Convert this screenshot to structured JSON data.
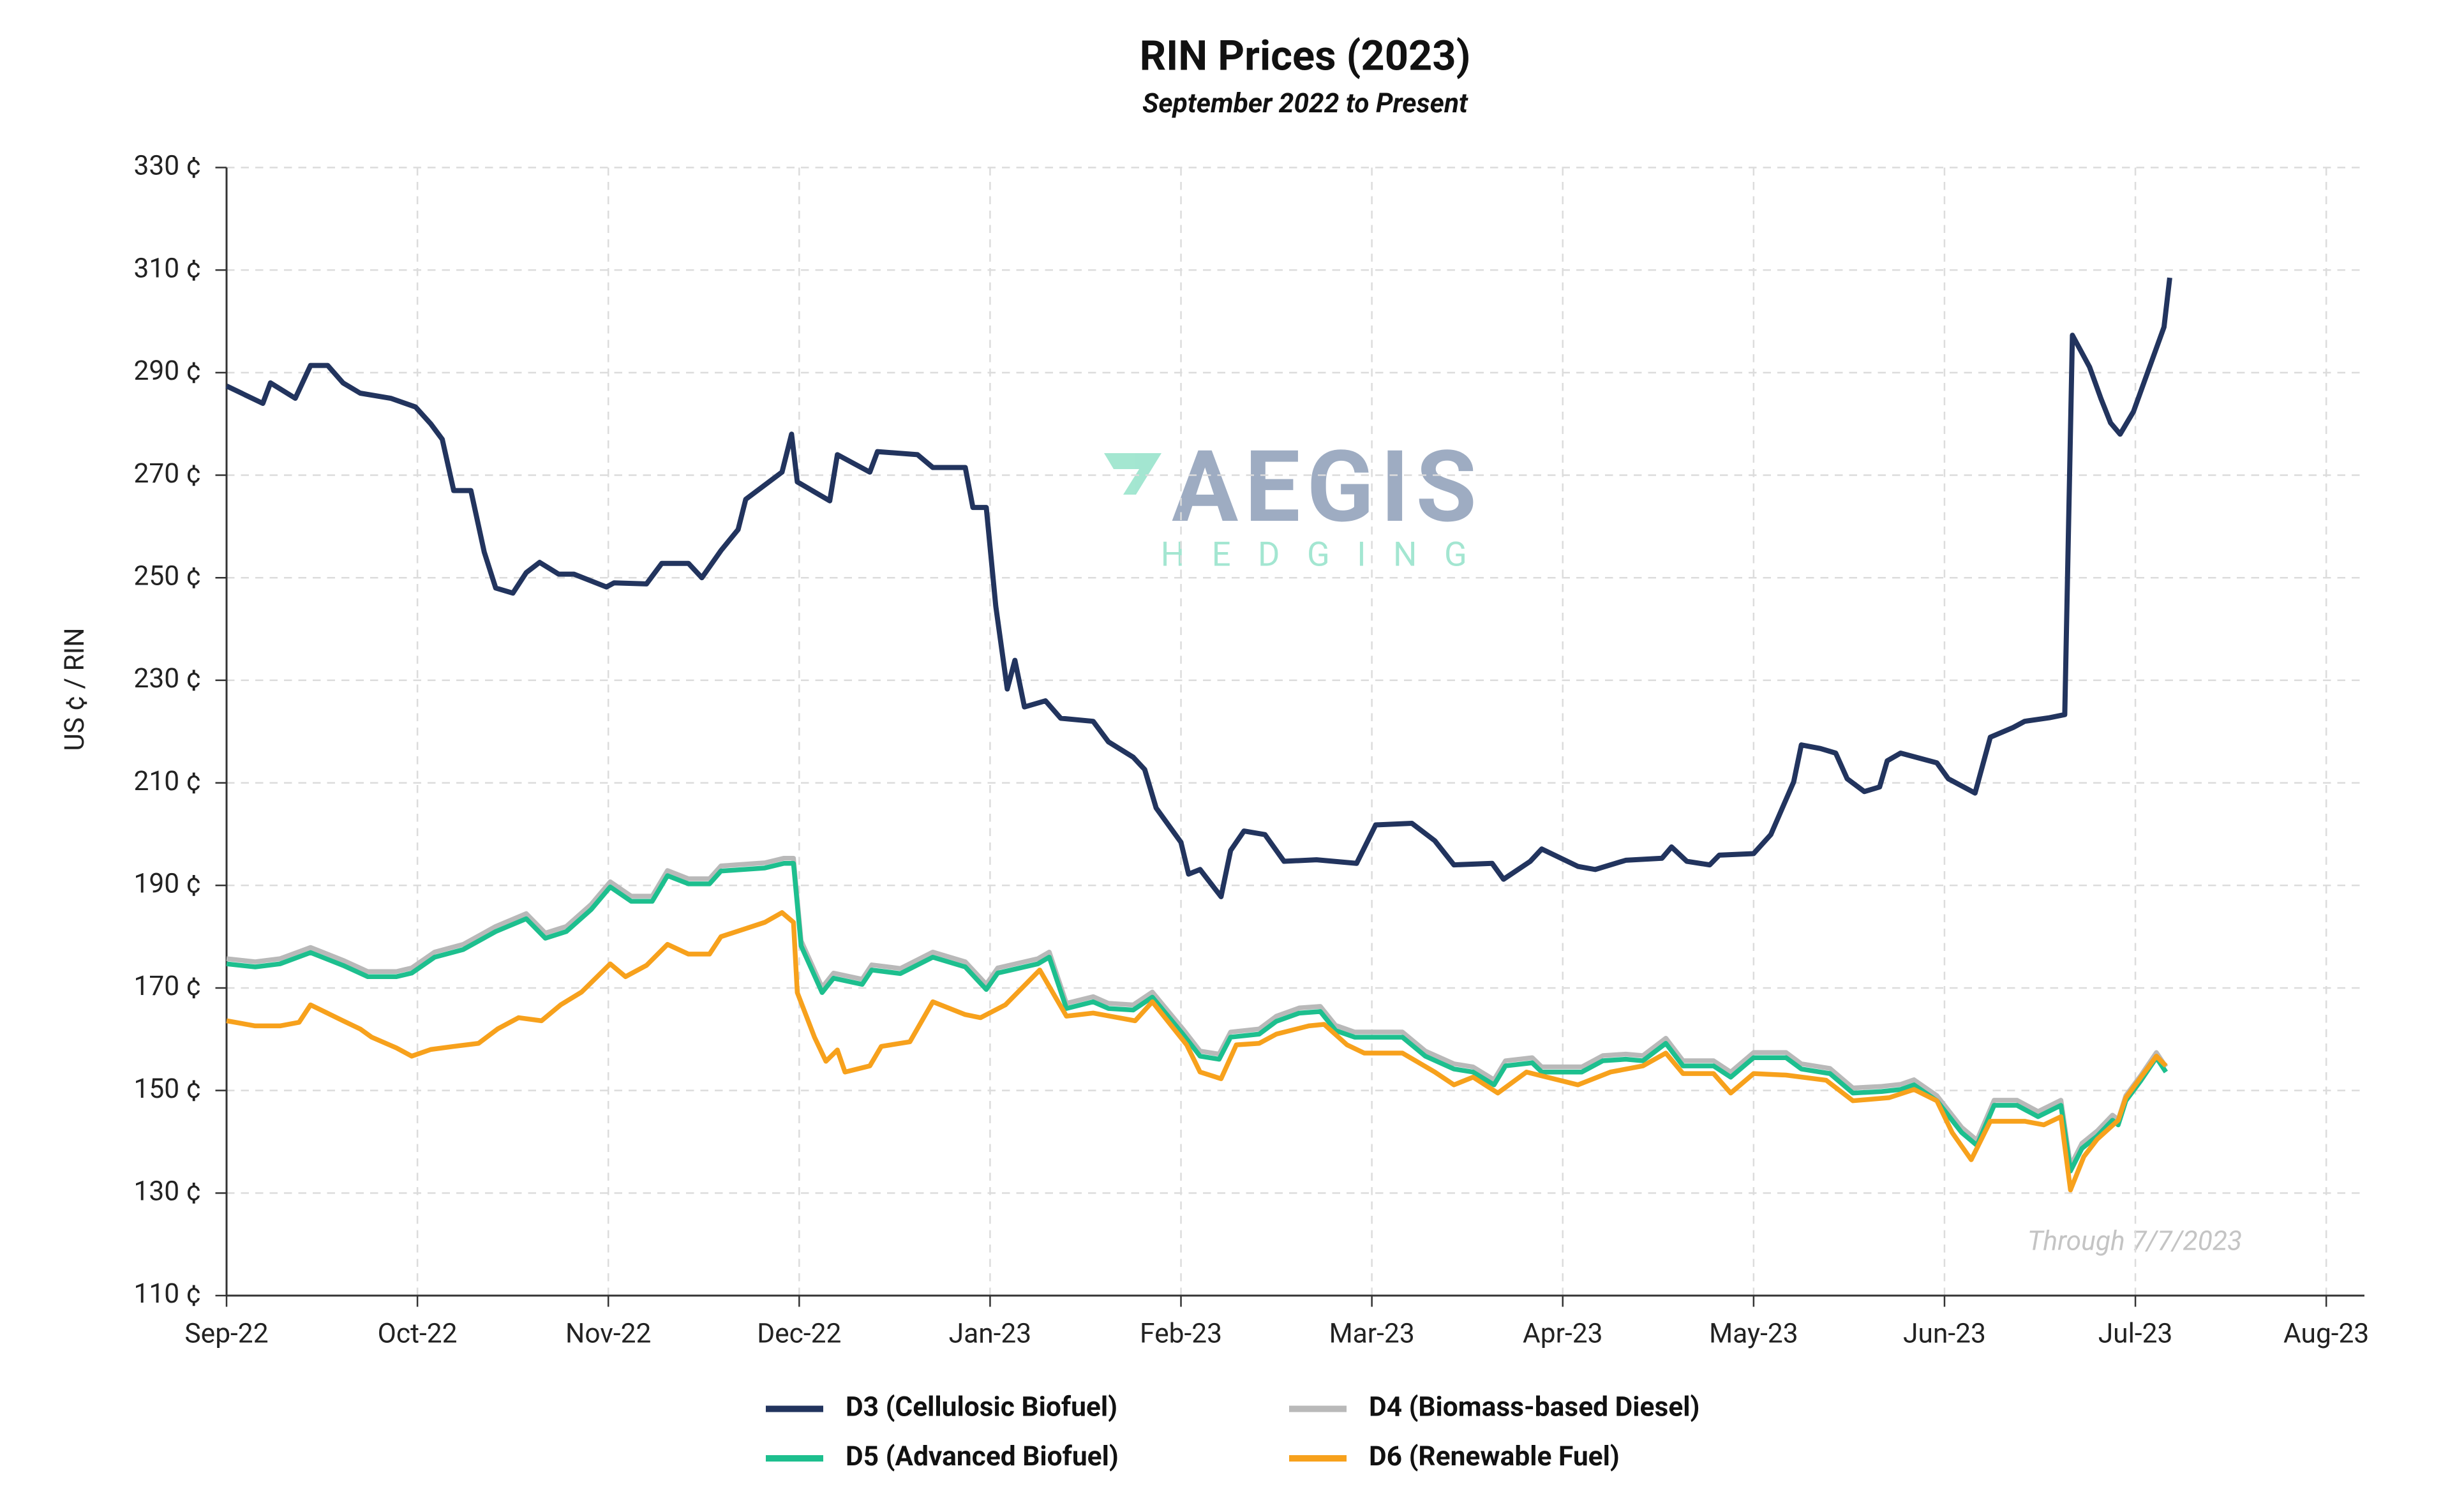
{
  "chart_data": {
    "type": "line",
    "title": "RIN Prices (2023)",
    "subtitle": "September 2022 to Present",
    "y_label": "US ¢  / RIN",
    "annotation": "Through 7/7/2023",
    "watermark": [
      "AEGIS",
      "HEDGING"
    ],
    "grid": true,
    "xlim": [
      0,
      11.2
    ],
    "xticks": [
      {
        "value": 0,
        "label": "Sep-22"
      },
      {
        "value": 1,
        "label": "Oct-22"
      },
      {
        "value": 2,
        "label": "Nov-22"
      },
      {
        "value": 3,
        "label": "Dec-22"
      },
      {
        "value": 4,
        "label": "Jan-23"
      },
      {
        "value": 5,
        "label": "Feb-23"
      },
      {
        "value": 6,
        "label": "Mar-23"
      },
      {
        "value": 7,
        "label": "Apr-23"
      },
      {
        "value": 8,
        "label": "May-23"
      },
      {
        "value": 9,
        "label": "Jun-23"
      },
      {
        "value": 10,
        "label": "Jul-23"
      },
      {
        "value": 11,
        "label": "Aug-23"
      }
    ],
    "ylim": [
      110,
      330
    ],
    "yticks": [
      {
        "value": 110,
        "label": "110 ¢"
      },
      {
        "value": 130,
        "label": "130 ¢"
      },
      {
        "value": 150,
        "label": "150 ¢"
      },
      {
        "value": 170,
        "label": "170 ¢"
      },
      {
        "value": 190,
        "label": "190 ¢"
      },
      {
        "value": 210,
        "label": "210 ¢"
      },
      {
        "value": 230,
        "label": "230 ¢"
      },
      {
        "value": 250,
        "label": "250 ¢"
      },
      {
        "value": 270,
        "label": "270 ¢"
      },
      {
        "value": 290,
        "label": "290 ¢"
      },
      {
        "value": 310,
        "label": "310 ¢"
      },
      {
        "value": 330,
        "label": "330 ¢"
      }
    ],
    "series": [
      {
        "name": "D3 (Cellulosic Biofuel)",
        "color": "#22345e",
        "x": [
          0,
          0.19,
          0.23,
          0.36,
          0.44,
          0.53,
          0.61,
          0.7,
          0.86,
          0.99,
          1.07,
          1.13,
          1.19,
          1.28,
          1.35,
          1.41,
          1.5,
          1.57,
          1.64,
          1.74,
          1.82,
          1.99,
          2.03,
          2.2,
          2.28,
          2.42,
          2.49,
          2.59,
          2.68,
          2.72,
          2.91,
          2.96,
          2.99,
          3.16,
          3.2,
          3.37,
          3.41,
          3.62,
          3.7,
          3.87,
          3.91,
          3.98,
          4.03,
          4.09,
          4.13,
          4.18,
          4.29,
          4.37,
          4.54,
          4.62,
          4.75,
          4.81,
          4.87,
          5.0,
          5.04,
          5.1,
          5.21,
          5.26,
          5.33,
          5.44,
          5.54,
          5.71,
          5.92,
          6.02,
          6.21,
          6.33,
          6.43,
          6.63,
          6.69,
          6.83,
          6.89,
          7.08,
          7.17,
          7.33,
          7.52,
          7.57,
          7.65,
          7.77,
          7.82,
          8.0,
          8.09,
          8.21,
          8.25,
          8.35,
          8.43,
          8.49,
          8.58,
          8.66,
          8.7,
          8.77,
          8.96,
          9.02,
          9.16,
          9.24,
          9.36,
          9.42,
          9.55,
          9.63,
          9.67,
          9.76,
          9.82,
          9.87,
          9.92,
          9.99,
          10.15,
          10.18
        ],
        "values": [
          287.4,
          284,
          288,
          285,
          291.4,
          291.4,
          288,
          286,
          285,
          283.3,
          280,
          277,
          267,
          267,
          255,
          248,
          247,
          251,
          253,
          250.7,
          250.7,
          248.2,
          249,
          248.8,
          252.8,
          252.8,
          250,
          255.3,
          259.4,
          265.3,
          270.6,
          278,
          268.7,
          265,
          274,
          270.6,
          274.6,
          274,
          271.5,
          271.5,
          263.7,
          263.7,
          244.4,
          228.3,
          233.9,
          224.8,
          226,
          222.6,
          222,
          218,
          215,
          212.6,
          205.1,
          198.4,
          192.2,
          193.1,
          187.8,
          196.8,
          200.6,
          199.9,
          194.7,
          195,
          194.3,
          201.8,
          202.1,
          198.7,
          194,
          194.3,
          191.2,
          194.7,
          197.1,
          193.7,
          193.1,
          194.9,
          195.3,
          197.5,
          194.7,
          194,
          195.9,
          196.2,
          199.9,
          210.2,
          217.4,
          216.7,
          215.8,
          210.8,
          208.3,
          209.2,
          214.3,
          215.8,
          213.9,
          210.8,
          208,
          218.9,
          220.8,
          222,
          222.7,
          223.3,
          297.3,
          291.1,
          284.9,
          280.2,
          278,
          282.4,
          298.9,
          308.5
        ]
      },
      {
        "name": "D4 (Biomass-based Diesel)",
        "color": "#b9b9b9",
        "x": [
          0,
          0.15,
          0.28,
          0.44,
          0.61,
          0.74,
          0.89,
          0.97,
          1.09,
          1.24,
          1.41,
          1.57,
          1.67,
          1.78,
          1.91,
          2.01,
          2.12,
          2.23,
          2.31,
          2.42,
          2.53,
          2.59,
          2.82,
          2.92,
          2.97,
          3.01,
          3.12,
          3.18,
          3.33,
          3.38,
          3.53,
          3.7,
          3.87,
          3.98,
          4.04,
          4.25,
          4.31,
          4.4,
          4.54,
          4.62,
          4.75,
          4.85,
          5.01,
          5.1,
          5.2,
          5.26,
          5.41,
          5.5,
          5.62,
          5.73,
          5.81,
          5.91,
          6.16,
          6.28,
          6.43,
          6.53,
          6.64,
          6.7,
          6.84,
          6.89,
          7.1,
          7.21,
          7.33,
          7.42,
          7.54,
          7.63,
          7.79,
          7.88,
          8.0,
          8.17,
          8.25,
          8.4,
          8.52,
          8.67,
          8.77,
          8.84,
          8.96,
          9.09,
          9.17,
          9.26,
          9.38,
          9.49,
          9.61,
          9.66,
          9.72,
          9.8,
          9.88,
          9.91,
          9.95,
          10.03,
          10.11,
          10.16
        ],
        "values": [
          175.7,
          175.1,
          175.7,
          177.9,
          175.4,
          173.2,
          173.2,
          173.9,
          177,
          178.5,
          182,
          184.5,
          180.7,
          182,
          186.3,
          190.7,
          187.9,
          187.9,
          192.9,
          191.3,
          191.3,
          193.8,
          194.4,
          195.3,
          195.3,
          179.2,
          170.1,
          172.9,
          171.7,
          174.5,
          173.8,
          177,
          175.1,
          170.7,
          173.9,
          175.7,
          177,
          167,
          168.3,
          167,
          166.7,
          169.2,
          162,
          157.7,
          157.1,
          161.4,
          162,
          164.5,
          166.1,
          166.4,
          162.7,
          161.4,
          161.4,
          157.7,
          155.2,
          154.6,
          152.1,
          155.8,
          156.4,
          154.6,
          154.6,
          156.8,
          157.1,
          156.8,
          160.2,
          155.8,
          155.8,
          153.6,
          157.4,
          157.4,
          155.2,
          154.3,
          150.5,
          150.8,
          151.2,
          152.1,
          149,
          142.8,
          140.3,
          148.1,
          148.1,
          145.9,
          148.1,
          135.3,
          139.7,
          142.1,
          145.2,
          144.3,
          149,
          153,
          157.4,
          154.6
        ]
      },
      {
        "name": "D5 (Advanced Biofuel)",
        "color": "#1dbf8e",
        "x": [
          0,
          0.15,
          0.28,
          0.44,
          0.61,
          0.74,
          0.89,
          0.97,
          1.09,
          1.24,
          1.41,
          1.57,
          1.67,
          1.78,
          1.91,
          2.01,
          2.12,
          2.23,
          2.31,
          2.42,
          2.53,
          2.59,
          2.82,
          2.92,
          2.97,
          3.01,
          3.12,
          3.18,
          3.33,
          3.38,
          3.53,
          3.7,
          3.87,
          3.98,
          4.04,
          4.25,
          4.31,
          4.4,
          4.54,
          4.62,
          4.75,
          4.85,
          5.01,
          5.1,
          5.2,
          5.26,
          5.41,
          5.5,
          5.62,
          5.73,
          5.81,
          5.91,
          6.16,
          6.28,
          6.43,
          6.53,
          6.64,
          6.7,
          6.84,
          6.89,
          7.1,
          7.21,
          7.33,
          7.42,
          7.54,
          7.63,
          7.79,
          7.88,
          8.0,
          8.17,
          8.25,
          8.4,
          8.52,
          8.67,
          8.77,
          8.84,
          8.96,
          9.09,
          9.17,
          9.26,
          9.38,
          9.49,
          9.61,
          9.66,
          9.72,
          9.8,
          9.88,
          9.91,
          9.95,
          10.03,
          10.11,
          10.16
        ],
        "values": [
          174.7,
          174.1,
          174.7,
          176.9,
          174.4,
          172.2,
          172.2,
          172.9,
          176,
          177.5,
          181,
          183.5,
          179.7,
          181,
          185.3,
          189.7,
          186.9,
          186.9,
          191.9,
          190.3,
          190.3,
          192.8,
          193.4,
          194.3,
          194.3,
          178.2,
          169.1,
          171.9,
          170.7,
          173.5,
          172.8,
          176,
          174.1,
          169.7,
          172.9,
          174.7,
          176,
          166,
          167.3,
          166,
          165.7,
          168.2,
          161,
          156.7,
          156.1,
          160.4,
          161,
          163.5,
          165.1,
          165.4,
          161.7,
          160.4,
          160.4,
          156.7,
          154.2,
          153.6,
          151.1,
          154.8,
          155.4,
          153.6,
          153.6,
          155.8,
          156.1,
          155.8,
          159.2,
          154.8,
          154.8,
          152.6,
          156.4,
          156.4,
          154.2,
          153.3,
          149.5,
          149.8,
          150.2,
          151.1,
          148,
          141.8,
          139.3,
          147.1,
          147.1,
          144.9,
          147.1,
          134.3,
          138.7,
          141.1,
          144.2,
          143.3,
          148,
          152,
          156.4,
          153.6
        ]
      },
      {
        "name": "D6 (Renewable Fuel)",
        "color": "#f7a11c",
        "x": [
          0,
          0.15,
          0.28,
          0.38,
          0.44,
          0.61,
          0.7,
          0.76,
          0.89,
          0.97,
          1.07,
          1.19,
          1.32,
          1.42,
          1.53,
          1.65,
          1.75,
          1.86,
          2.01,
          2.09,
          2.2,
          2.31,
          2.42,
          2.53,
          2.59,
          2.82,
          2.91,
          2.97,
          2.99,
          3.08,
          3.14,
          3.2,
          3.24,
          3.37,
          3.43,
          3.58,
          3.7,
          3.87,
          3.95,
          4.08,
          4.26,
          4.4,
          4.54,
          4.76,
          4.85,
          5.03,
          5.1,
          5.21,
          5.29,
          5.41,
          5.5,
          5.67,
          5.75,
          5.87,
          5.96,
          6.16,
          6.33,
          6.43,
          6.53,
          6.66,
          6.81,
          7.08,
          7.25,
          7.42,
          7.54,
          7.63,
          7.79,
          7.88,
          8.0,
          8.17,
          8.38,
          8.52,
          8.71,
          8.84,
          8.96,
          9.04,
          9.14,
          9.24,
          9.42,
          9.52,
          9.61,
          9.66,
          9.73,
          9.8,
          9.91,
          9.95,
          10.11,
          10.16
        ],
        "values": [
          163.6,
          162.6,
          162.6,
          163.3,
          166.7,
          163.6,
          162,
          160.4,
          158.3,
          156.7,
          158,
          158.6,
          159.2,
          162,
          164.2,
          163.6,
          166.7,
          169.2,
          174.7,
          172.2,
          174.4,
          178.5,
          176.6,
          176.6,
          180,
          182.8,
          184.7,
          182.8,
          169.1,
          160.4,
          155.7,
          157.9,
          153.6,
          154.8,
          158.6,
          159.5,
          167.3,
          164.8,
          164.2,
          166.7,
          173.5,
          164.5,
          165.1,
          163.6,
          167.3,
          158.9,
          153.6,
          152.3,
          158.9,
          159.2,
          161,
          162.6,
          162.9,
          158.9,
          157.3,
          157.3,
          153.6,
          151.1,
          152.6,
          149.5,
          153.6,
          151.1,
          153.6,
          154.8,
          157.3,
          153.3,
          153.3,
          149.5,
          153.3,
          153,
          152,
          148,
          148.6,
          150.2,
          148,
          141.8,
          136.5,
          144,
          144,
          143.3,
          144.9,
          130.6,
          137.1,
          140.5,
          144.2,
          148.6,
          156.7,
          154.8
        ]
      }
    ]
  }
}
